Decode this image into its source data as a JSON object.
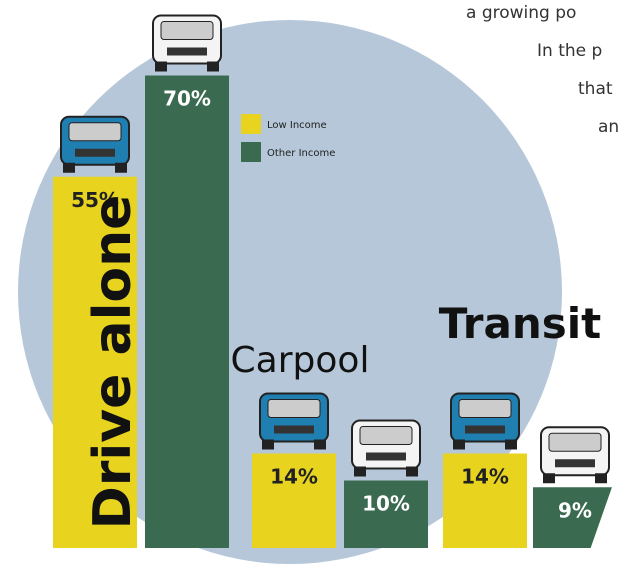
{
  "chart_data": {
    "type": "bar",
    "categories": [
      "Drive alone",
      "Carpool",
      "Transit"
    ],
    "series": [
      {
        "name": "Low Income",
        "color": "#e8d41f",
        "values": [
          55,
          14,
          14
        ],
        "value_labels": [
          "55%",
          "14%",
          "14%"
        ]
      },
      {
        "name": "Other Income",
        "color": "#3a6a4f",
        "values": [
          70,
          10,
          9
        ],
        "value_labels": [
          "70%",
          "10%",
          "9%"
        ]
      }
    ]
  },
  "annotations": [
    "a growing po",
    "In the p",
    "that",
    "an"
  ]
}
